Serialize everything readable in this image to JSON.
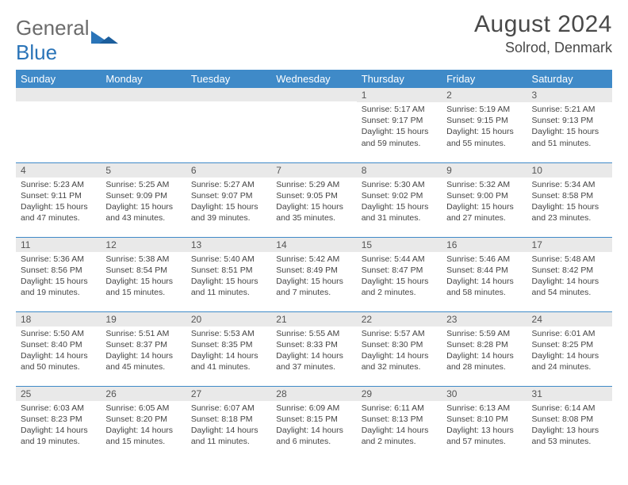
{
  "logo": {
    "word1": "General",
    "word2": "Blue"
  },
  "title": "August 2024",
  "location": "Solrod, Denmark",
  "colors": {
    "header_bg": "#3f8ac8",
    "header_text": "#ffffff",
    "daynum_bg": "#e9e9e9",
    "row_border": "#3f8ac8",
    "text": "#444444",
    "logo_gray": "#6b6b6b",
    "logo_blue": "#2a74b8"
  },
  "typography": {
    "title_fontsize": 30,
    "location_fontsize": 18,
    "dow_fontsize": 13,
    "daynum_fontsize": 12,
    "body_fontsize": 10.5
  },
  "dow": [
    "Sunday",
    "Monday",
    "Tuesday",
    "Wednesday",
    "Thursday",
    "Friday",
    "Saturday"
  ],
  "weeks": [
    [
      {
        "n": "",
        "sr": "",
        "ss": "",
        "dl": ""
      },
      {
        "n": "",
        "sr": "",
        "ss": "",
        "dl": ""
      },
      {
        "n": "",
        "sr": "",
        "ss": "",
        "dl": ""
      },
      {
        "n": "",
        "sr": "",
        "ss": "",
        "dl": ""
      },
      {
        "n": "1",
        "sr": "5:17 AM",
        "ss": "9:17 PM",
        "dl": "15 hours and 59 minutes."
      },
      {
        "n": "2",
        "sr": "5:19 AM",
        "ss": "9:15 PM",
        "dl": "15 hours and 55 minutes."
      },
      {
        "n": "3",
        "sr": "5:21 AM",
        "ss": "9:13 PM",
        "dl": "15 hours and 51 minutes."
      }
    ],
    [
      {
        "n": "4",
        "sr": "5:23 AM",
        "ss": "9:11 PM",
        "dl": "15 hours and 47 minutes."
      },
      {
        "n": "5",
        "sr": "5:25 AM",
        "ss": "9:09 PM",
        "dl": "15 hours and 43 minutes."
      },
      {
        "n": "6",
        "sr": "5:27 AM",
        "ss": "9:07 PM",
        "dl": "15 hours and 39 minutes."
      },
      {
        "n": "7",
        "sr": "5:29 AM",
        "ss": "9:05 PM",
        "dl": "15 hours and 35 minutes."
      },
      {
        "n": "8",
        "sr": "5:30 AM",
        "ss": "9:02 PM",
        "dl": "15 hours and 31 minutes."
      },
      {
        "n": "9",
        "sr": "5:32 AM",
        "ss": "9:00 PM",
        "dl": "15 hours and 27 minutes."
      },
      {
        "n": "10",
        "sr": "5:34 AM",
        "ss": "8:58 PM",
        "dl": "15 hours and 23 minutes."
      }
    ],
    [
      {
        "n": "11",
        "sr": "5:36 AM",
        "ss": "8:56 PM",
        "dl": "15 hours and 19 minutes."
      },
      {
        "n": "12",
        "sr": "5:38 AM",
        "ss": "8:54 PM",
        "dl": "15 hours and 15 minutes."
      },
      {
        "n": "13",
        "sr": "5:40 AM",
        "ss": "8:51 PM",
        "dl": "15 hours and 11 minutes."
      },
      {
        "n": "14",
        "sr": "5:42 AM",
        "ss": "8:49 PM",
        "dl": "15 hours and 7 minutes."
      },
      {
        "n": "15",
        "sr": "5:44 AM",
        "ss": "8:47 PM",
        "dl": "15 hours and 2 minutes."
      },
      {
        "n": "16",
        "sr": "5:46 AM",
        "ss": "8:44 PM",
        "dl": "14 hours and 58 minutes."
      },
      {
        "n": "17",
        "sr": "5:48 AM",
        "ss": "8:42 PM",
        "dl": "14 hours and 54 minutes."
      }
    ],
    [
      {
        "n": "18",
        "sr": "5:50 AM",
        "ss": "8:40 PM",
        "dl": "14 hours and 50 minutes."
      },
      {
        "n": "19",
        "sr": "5:51 AM",
        "ss": "8:37 PM",
        "dl": "14 hours and 45 minutes."
      },
      {
        "n": "20",
        "sr": "5:53 AM",
        "ss": "8:35 PM",
        "dl": "14 hours and 41 minutes."
      },
      {
        "n": "21",
        "sr": "5:55 AM",
        "ss": "8:33 PM",
        "dl": "14 hours and 37 minutes."
      },
      {
        "n": "22",
        "sr": "5:57 AM",
        "ss": "8:30 PM",
        "dl": "14 hours and 32 minutes."
      },
      {
        "n": "23",
        "sr": "5:59 AM",
        "ss": "8:28 PM",
        "dl": "14 hours and 28 minutes."
      },
      {
        "n": "24",
        "sr": "6:01 AM",
        "ss": "8:25 PM",
        "dl": "14 hours and 24 minutes."
      }
    ],
    [
      {
        "n": "25",
        "sr": "6:03 AM",
        "ss": "8:23 PM",
        "dl": "14 hours and 19 minutes."
      },
      {
        "n": "26",
        "sr": "6:05 AM",
        "ss": "8:20 PM",
        "dl": "14 hours and 15 minutes."
      },
      {
        "n": "27",
        "sr": "6:07 AM",
        "ss": "8:18 PM",
        "dl": "14 hours and 11 minutes."
      },
      {
        "n": "28",
        "sr": "6:09 AM",
        "ss": "8:15 PM",
        "dl": "14 hours and 6 minutes."
      },
      {
        "n": "29",
        "sr": "6:11 AM",
        "ss": "8:13 PM",
        "dl": "14 hours and 2 minutes."
      },
      {
        "n": "30",
        "sr": "6:13 AM",
        "ss": "8:10 PM",
        "dl": "13 hours and 57 minutes."
      },
      {
        "n": "31",
        "sr": "6:14 AM",
        "ss": "8:08 PM",
        "dl": "13 hours and 53 minutes."
      }
    ]
  ],
  "labels": {
    "sunrise": "Sunrise:",
    "sunset": "Sunset:",
    "daylight": "Daylight:"
  }
}
